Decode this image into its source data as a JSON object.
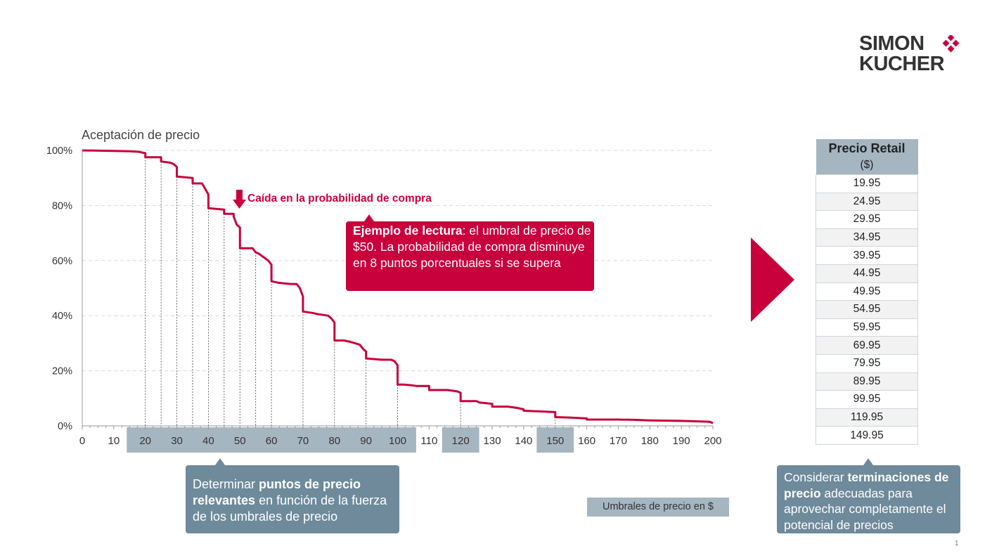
{
  "brand": {
    "line1": "SIMON",
    "line2": "KUCHER",
    "accent": "#c8003c"
  },
  "chart_data": {
    "type": "line",
    "step": true,
    "title": "Aceptación de precio",
    "xlabel": "Umbrales de precio en $",
    "ylabel": "Aceptación de precio",
    "xlim": [
      0,
      200
    ],
    "ylim": [
      0,
      100
    ],
    "x_ticks": [
      0,
      10,
      20,
      30,
      40,
      50,
      60,
      70,
      80,
      90,
      100,
      110,
      120,
      130,
      140,
      150,
      160,
      170,
      180,
      190,
      200
    ],
    "y_ticks": [
      0,
      20,
      40,
      60,
      80,
      100
    ],
    "y_tick_labels": [
      "0%",
      "20%",
      "40%",
      "60%",
      "80%",
      "100%"
    ],
    "grid": true,
    "series": [
      {
        "name": "Aceptación de precio",
        "color": "#c8003c",
        "x": [
          0,
          10,
          15,
          18,
          19,
          20,
          20,
          25,
          25,
          28,
          29,
          30,
          30,
          35,
          35,
          38,
          39,
          40,
          40,
          45,
          45,
          48,
          48,
          49,
          50,
          50,
          54,
          55,
          56,
          59,
          60,
          60,
          62,
          66,
          68,
          69,
          70,
          70,
          73,
          75,
          78,
          79,
          80,
          80,
          83,
          85,
          88,
          89,
          90,
          90,
          95,
          98,
          99,
          100,
          100,
          102,
          104,
          106,
          110,
          110,
          115,
          116,
          119,
          120,
          120,
          125,
          126,
          130,
          130,
          135,
          138,
          140,
          140,
          150,
          150,
          155,
          160,
          160,
          170,
          175,
          180,
          190,
          199,
          200
        ],
        "y": [
          100,
          99.8,
          99.7,
          99.5,
          99.2,
          99,
          97.5,
          97.5,
          96,
          95.5,
          95,
          94,
          90.5,
          90,
          88,
          88,
          86,
          84,
          79,
          78.5,
          77,
          77,
          76,
          73,
          72,
          64.5,
          64.5,
          63,
          62.5,
          60,
          58.5,
          52.5,
          52,
          51.5,
          51.5,
          50,
          47,
          41.5,
          41,
          40.5,
          40,
          39,
          37.5,
          31,
          31,
          30.5,
          29.5,
          28,
          27,
          24.5,
          24,
          24,
          23.5,
          22,
          15,
          15,
          14.8,
          14.5,
          14.5,
          13,
          13,
          13,
          12.5,
          12,
          9,
          9,
          8.5,
          8,
          7,
          7,
          6.5,
          6,
          5.5,
          5,
          3.2,
          3,
          2.7,
          2.3,
          2.3,
          2.2,
          2,
          1.8,
          1.5,
          1
        ],
        "threshold_marks": [
          20,
          25,
          30,
          35,
          40,
          45,
          50,
          55,
          60,
          70,
          80,
          90,
          100,
          120,
          150
        ]
      }
    ],
    "highlighted_ranges": [
      [
        20,
        100
      ],
      [
        120,
        120
      ],
      [
        150,
        150
      ]
    ],
    "annotations": [
      {
        "text": "Caída en la probabilidad  de compra",
        "x": 50
      }
    ]
  },
  "callouts": {
    "reading": {
      "bold": "Ejemplo de lectura",
      "rest": ": el umbral de precio de $50. La probabilidad de compra disminuye en 8 puntos porcentuales si se supera"
    },
    "relevant": {
      "pre": "Determinar ",
      "bold": "puntos de precio relevantes",
      "post": " en función de la fuerza de los umbrales de precio"
    },
    "endings": {
      "pre": "Considerar ",
      "bold": "terminaciones de precio",
      "post": " adecuadas para aprovechar completamente el potencial de precios"
    }
  },
  "table": {
    "header_title": "Precio Retail",
    "header_unit": "($)",
    "rows": [
      "19.95",
      "24.95",
      "29.95",
      "34.95",
      "39.95",
      "44.95",
      "49.95",
      "54.95",
      "59.95",
      "69.95",
      "79.95",
      "89.95",
      "99.95",
      "119.95",
      "149.95"
    ]
  },
  "legend_label": "Umbrales de precio en $",
  "page_number": "1",
  "colors": {
    "accent": "#c8003c",
    "slate": "#6e8a9b",
    "band": "#a6b6c1",
    "grid": "#d9d9d9"
  }
}
